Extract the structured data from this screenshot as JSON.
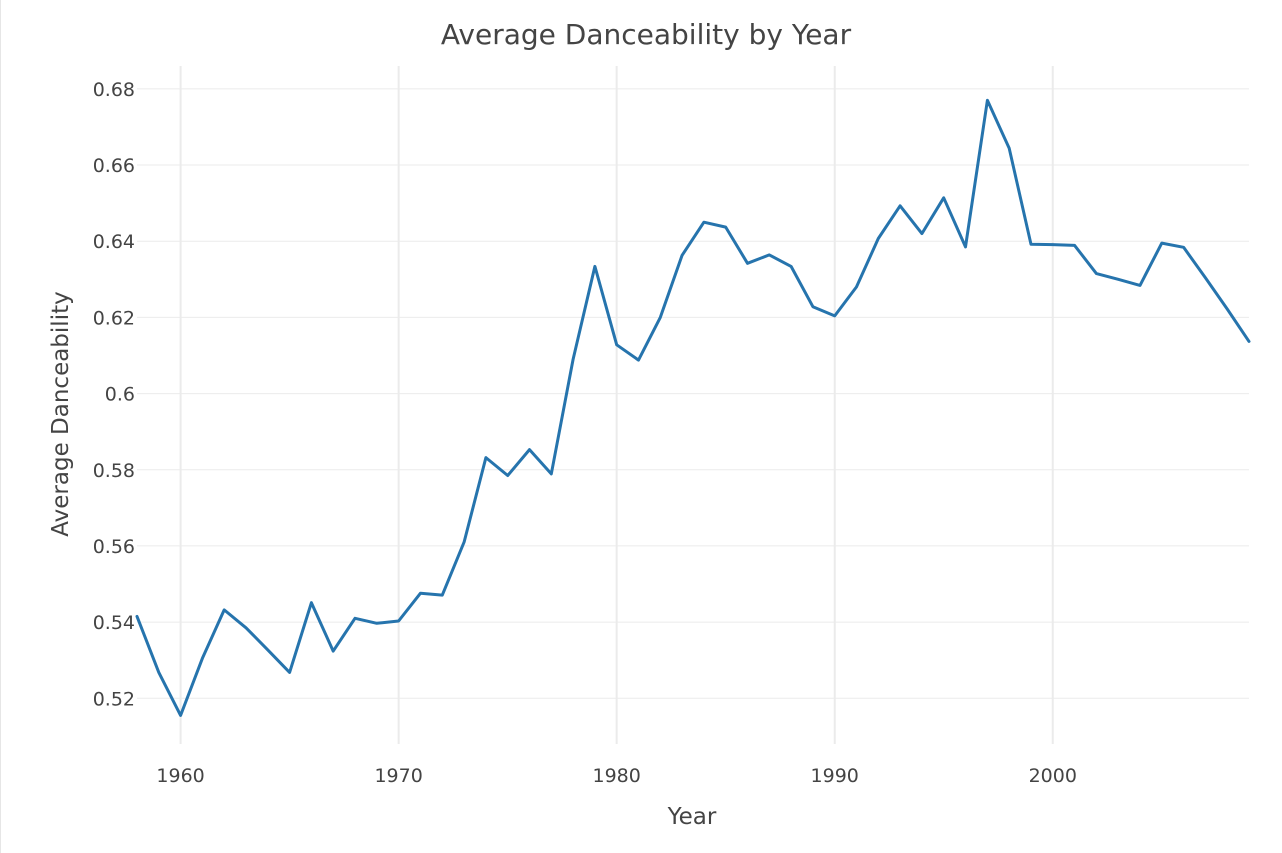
{
  "chart_data": {
    "type": "line",
    "title": "Average Danceability by Year",
    "xlabel": "Year",
    "ylabel": "Average Danceability",
    "xlim": [
      1958,
      2009
    ],
    "ylim": [
      0.508,
      0.686
    ],
    "xticks": [
      1960,
      1970,
      1980,
      1990,
      2000
    ],
    "xtick_labels": [
      "1960",
      "1970",
      "1980",
      "1990",
      "2000"
    ],
    "yticks": [
      0.52,
      0.54,
      0.56,
      0.58,
      0.6,
      0.62,
      0.64,
      0.66,
      0.68
    ],
    "ytick_labels": [
      "0.52",
      "0.54",
      "0.56",
      "0.58",
      "0.6",
      "0.62",
      "0.64",
      "0.66",
      "0.68"
    ],
    "grid": true,
    "legend": "none",
    "line_color": "#2674ad",
    "grid_color": "#ebebeb",
    "text_color": "#444444",
    "series": [
      {
        "x": [
          1958,
          1959,
          1960,
          1961,
          1962,
          1963,
          1964,
          1965,
          1966,
          1967,
          1968,
          1969,
          1970,
          1971,
          1972,
          1973,
          1974,
          1975,
          1976,
          1977,
          1978,
          1979,
          1980,
          1981,
          1982,
          1983,
          1984,
          1985,
          1986,
          1987,
          1988,
          1989,
          1990,
          1991,
          1992,
          1993,
          1994,
          1995,
          1996,
          1997,
          1998,
          1999,
          2000,
          2001,
          2002,
          2003,
          2004,
          2005,
          2006,
          2007,
          2008,
          2009
        ],
        "values": [
          0.5415,
          0.5268,
          0.5155,
          0.5305,
          0.5432,
          0.5385,
          0.5327,
          0.5268,
          0.5451,
          0.5324,
          0.541,
          0.5397,
          0.5403,
          0.5476,
          0.5471,
          0.561,
          0.5832,
          0.5785,
          0.5853,
          0.5789,
          0.609,
          0.6334,
          0.6128,
          0.6088,
          0.62,
          0.6363,
          0.645,
          0.6437,
          0.6342,
          0.6364,
          0.6334,
          0.6228,
          0.6204,
          0.628,
          0.6407,
          0.6493,
          0.642,
          0.6514,
          0.6385,
          0.677,
          0.6644,
          0.6392,
          0.6391,
          0.6389,
          0.6315,
          0.63,
          0.6284,
          0.6395,
          0.6384,
          0.6304,
          0.6222,
          0.6137
        ]
      }
    ]
  }
}
